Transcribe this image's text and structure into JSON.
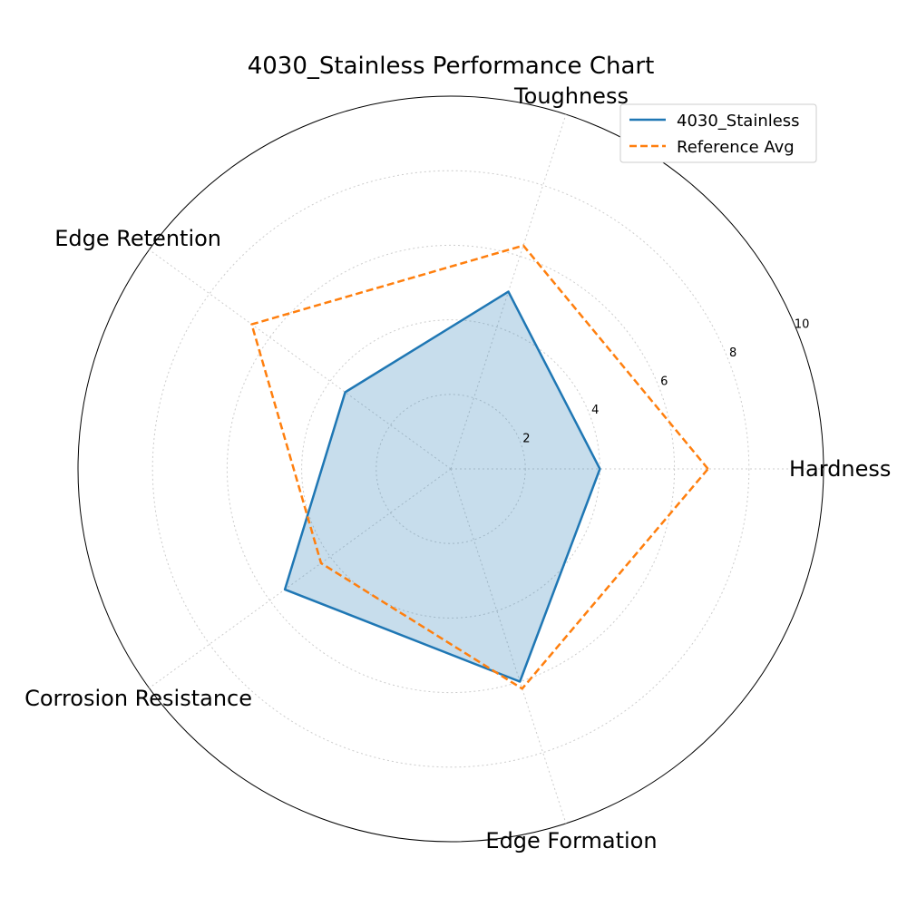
{
  "chart_data": {
    "type": "radar",
    "title": "4030_Stainless Performance Chart",
    "categories": [
      "Hardness",
      "Toughness",
      "Edge Retention",
      "Corrosion Resistance",
      "Edge Formation"
    ],
    "rlim": [
      0,
      10
    ],
    "rticks": [
      "2",
      "4",
      "6",
      "8",
      "10"
    ],
    "rtick_values": [
      2,
      4,
      6,
      8,
      10
    ],
    "grid": true,
    "legend_placement": "top-right",
    "series": [
      {
        "name": "4030_Stainless",
        "values": [
          4.0,
          5.0,
          3.5,
          5.5,
          6.0
        ],
        "color": "#1f77b4",
        "style": "solid",
        "filled": true
      },
      {
        "name": "Reference Avg",
        "values": [
          6.9,
          6.3,
          6.6,
          4.3,
          6.2
        ],
        "color": "#ff7f0e",
        "style": "dashed",
        "filled": false
      }
    ]
  }
}
